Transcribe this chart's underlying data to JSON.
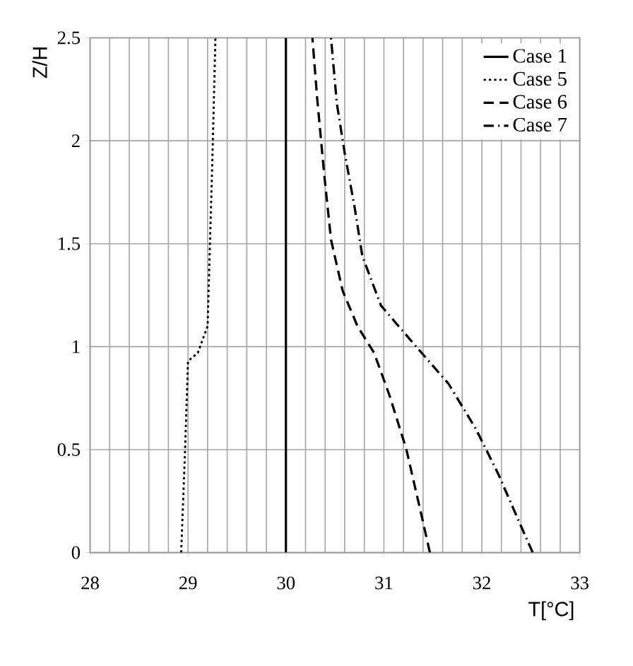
{
  "chart_data": {
    "type": "line",
    "xlabel": "T[°C]",
    "ylabel": "Z/H",
    "xlim": [
      28,
      33
    ],
    "ylim": [
      0,
      2.5
    ],
    "xticks": [
      28,
      29,
      30,
      31,
      32,
      33
    ],
    "yticks": [
      0,
      0.5,
      1,
      1.5,
      2,
      2.5
    ],
    "grid": true,
    "legend": "top right",
    "marker": "none",
    "series": [
      {
        "name": "Case 1",
        "color": "#000000",
        "line_style": "solid",
        "x": [
          30,
          30
        ],
        "values": [
          0,
          2.5
        ]
      },
      {
        "name": "Case 5",
        "color": "#000000",
        "line_style": "dotted",
        "x": [
          28.93,
          28.97,
          29.0,
          29.1,
          29.2,
          29.21,
          29.25,
          29.28
        ],
        "values": [
          0,
          0.5,
          0.93,
          0.97,
          1.1,
          1.27,
          1.93,
          2.5
        ]
      },
      {
        "name": "Case 6",
        "color": "#000000",
        "line_style": "dashed",
        "x": [
          31.47,
          31.37,
          31.23,
          31.06,
          30.9,
          30.73,
          30.58,
          30.46,
          30.39,
          30.32,
          30.27
        ],
        "values": [
          0,
          0.21,
          0.5,
          0.76,
          0.97,
          1.1,
          1.27,
          1.52,
          1.84,
          2.2,
          2.5
        ]
      },
      {
        "name": "Case 7",
        "color": "#000000",
        "line_style": "dashdot",
        "x": [
          32.52,
          32.38,
          32.17,
          31.94,
          31.66,
          31.33,
          31.15,
          30.97,
          30.78,
          30.7,
          30.6,
          30.52,
          30.46
        ],
        "values": [
          0,
          0.15,
          0.38,
          0.6,
          0.82,
          1.0,
          1.1,
          1.2,
          1.44,
          1.68,
          1.94,
          2.18,
          2.5
        ]
      }
    ]
  }
}
